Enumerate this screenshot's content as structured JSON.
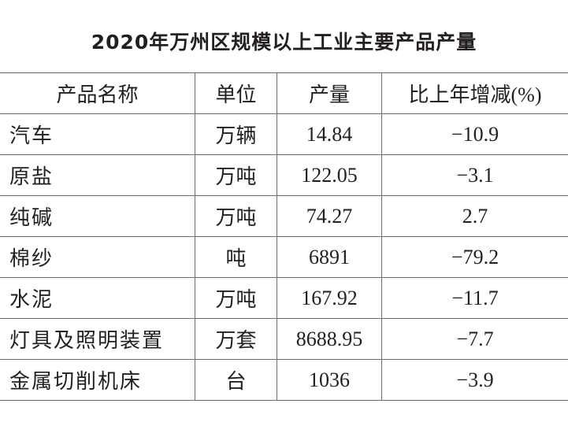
{
  "header": {
    "title": "2020年万州区规模以上工业主要产品产量"
  },
  "table": {
    "columns": [
      "产品名称",
      "单位",
      "产量",
      "比上年增减(%)"
    ],
    "rows": [
      [
        "汽车",
        "万辆",
        "14.84",
        "−10.9"
      ],
      [
        "原盐",
        "万吨",
        "122.05",
        "−3.1"
      ],
      [
        "纯碱",
        "万吨",
        "74.27",
        "2.7"
      ],
      [
        "棉纱",
        "吨",
        "6891",
        "−79.2"
      ],
      [
        "水泥",
        "万吨",
        "167.92",
        "−11.7"
      ],
      [
        "灯具及照明装置",
        "万套",
        "8688.95",
        "−7.7"
      ],
      [
        "金属切削机床",
        "台",
        "1036",
        "−3.9"
      ]
    ]
  }
}
